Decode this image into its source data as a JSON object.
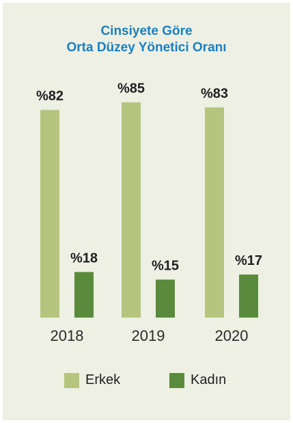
{
  "colors": {
    "title": "#1a7fc1",
    "erkek": "#b5c57d",
    "kadin": "#5a8a3c",
    "background": "#eef0e4"
  },
  "chart_data": {
    "type": "bar",
    "title": "Cinsiyete Göre Orta Düzey Yönetici Oranı",
    "title_lines": [
      "Cinsiyete Göre",
      "Orta Düzey Yönetici Oranı"
    ],
    "categories": [
      "2018",
      "2019",
      "2020"
    ],
    "series": [
      {
        "name": "Erkek",
        "values": [
          82,
          85,
          83
        ],
        "labels": [
          "%82",
          "%85",
          "%83"
        ]
      },
      {
        "name": "Kadın",
        "values": [
          18,
          15,
          17
        ],
        "labels": [
          "%18",
          "%15",
          "%17"
        ]
      }
    ],
    "ylim": [
      0,
      100
    ],
    "grid": false,
    "legend_position": "bottom"
  }
}
